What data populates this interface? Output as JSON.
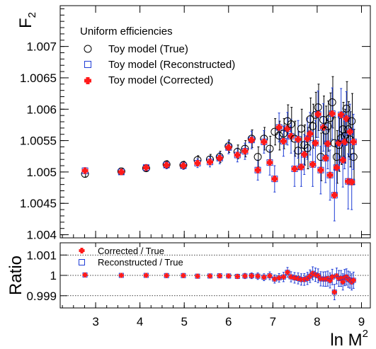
{
  "chart_data": [
    {
      "type": "scatter",
      "panel": "top",
      "ylabel": "F",
      "ylabel_sub": "2",
      "xlim": [
        2.2,
        9.2
      ],
      "ylim": [
        1.00395,
        1.00765
      ],
      "yticks": [
        "1.004",
        "1.0045",
        "1.005",
        "1.0055",
        "1.006",
        "1.0065",
        "1.007"
      ],
      "legend": {
        "header": "Uniform efficiencies",
        "entries": [
          "Toy model (True)",
          "Toy model (Reconstructed)",
          "Toy model (Corrected)"
        ]
      },
      "colors": {
        "true": "#000000",
        "reconstructed": "#1f3dd6",
        "corrected": "#ff1a1a"
      },
      "x": [
        2.76,
        3.58,
        4.14,
        4.6,
        4.98,
        5.3,
        5.58,
        5.8,
        6.0,
        6.2,
        6.37,
        6.52,
        6.66,
        6.8,
        6.93,
        7.04,
        7.14,
        7.24,
        7.33,
        7.41,
        7.49,
        7.57,
        7.64,
        7.71,
        7.78,
        7.84,
        7.9,
        7.96,
        8.02,
        8.08,
        8.14,
        8.19,
        8.24,
        8.29,
        8.34,
        8.39,
        8.44,
        8.49,
        8.54,
        8.58,
        8.62,
        8.66,
        8.7,
        8.74,
        8.78,
        8.82
      ],
      "series": [
        {
          "key": "true",
          "y": [
            1.00497,
            1.00501,
            1.00506,
            1.00512,
            1.00511,
            1.00519,
            1.0052,
            1.00524,
            1.00541,
            1.00532,
            1.00537,
            1.00553,
            1.00524,
            1.00553,
            1.00537,
            1.00564,
            1.00558,
            1.00561,
            1.00581,
            1.00576,
            1.00553,
            1.00534,
            1.00569,
            1.00543,
            1.00538,
            1.00584,
            1.00573,
            1.00591,
            1.00603,
            1.00524,
            1.00583,
            1.00566,
            1.00573,
            1.00586,
            1.00611,
            1.00546,
            1.00524,
            1.00543,
            1.00554,
            1.00568,
            1.00557,
            1.00601,
            1.00568,
            1.00552,
            1.00581,
            1.00524
          ],
          "err": [
            5e-05,
            4e-05,
            5e-05,
            6e-05,
            6e-05,
            7e-05,
            8e-05,
            9e-05,
            0.0001,
            0.00011,
            0.00013,
            0.00014,
            0.00016,
            0.00018,
            0.0002,
            0.00021,
            0.00023,
            0.00024,
            0.00026,
            0.00027,
            0.00028,
            0.0003,
            0.00031,
            0.00032,
            0.00033,
            0.00034,
            0.00035,
            0.00036,
            0.00037,
            0.00038,
            0.00038,
            0.00039,
            0.0004,
            0.0004,
            0.00041,
            0.00041,
            0.00042,
            0.00042,
            0.00042,
            0.00043,
            0.00043,
            0.00043,
            0.00044,
            0.00044,
            0.00044,
            0.00044
          ]
        },
        {
          "key": "reconstructed",
          "y": [
            1.00502,
            1.005,
            1.00507,
            1.00511,
            1.0051,
            1.00514,
            1.00516,
            1.00522,
            1.00539,
            1.00527,
            1.00533,
            1.00551,
            1.00503,
            1.00548,
            1.00515,
            1.00489,
            1.00571,
            1.00549,
            1.00569,
            1.00557,
            1.00505,
            1.00552,
            1.00508,
            1.00528,
            1.00553,
            1.00561,
            1.00512,
            1.00546,
            1.00592,
            1.00503,
            1.00571,
            1.00522,
            1.00545,
            1.00495,
            1.00593,
            1.00463,
            1.00507,
            1.00546,
            1.00591,
            1.00519,
            1.00548,
            1.00585,
            1.00485,
            1.00564,
            1.00484,
            1.00548
          ],
          "err": [
            5e-05,
            4e-05,
            5e-05,
            6e-05,
            6e-05,
            7e-05,
            8e-05,
            9e-05,
            0.0001,
            0.00011,
            0.00013,
            0.00014,
            0.00016,
            0.00018,
            0.0002,
            0.00021,
            0.00023,
            0.00024,
            0.00026,
            0.00027,
            0.00028,
            0.0003,
            0.00031,
            0.00032,
            0.00033,
            0.00034,
            0.00035,
            0.00036,
            0.00037,
            0.00038,
            0.00038,
            0.00039,
            0.0004,
            0.0004,
            0.00041,
            0.00041,
            0.00042,
            0.00042,
            0.00042,
            0.00043,
            0.00043,
            0.00043,
            0.00044,
            0.00044,
            0.00044,
            0.00044
          ]
        },
        {
          "key": "corrected",
          "y": [
            1.00502,
            1.005,
            1.00507,
            1.00511,
            1.0051,
            1.00514,
            1.00516,
            1.00522,
            1.00539,
            1.00527,
            1.00533,
            1.00551,
            1.00503,
            1.00548,
            1.00515,
            1.00489,
            1.00571,
            1.00549,
            1.00569,
            1.00557,
            1.00505,
            1.00552,
            1.00508,
            1.00528,
            1.00553,
            1.00561,
            1.00512,
            1.00546,
            1.00592,
            1.00503,
            1.00571,
            1.00522,
            1.00545,
            1.00495,
            1.00593,
            1.00463,
            1.00507,
            1.00546,
            1.00591,
            1.00519,
            1.00548,
            1.00585,
            1.00485,
            1.00564,
            1.00484,
            1.00548
          ]
        }
      ]
    },
    {
      "type": "scatter",
      "panel": "bottom",
      "ylabel": "Ratio",
      "xlabel": "ln M",
      "xlabel_sup": "2",
      "xlim": [
        2.2,
        9.2
      ],
      "ylim": [
        0.9984,
        1.0016
      ],
      "xticks": [
        "3",
        "4",
        "5",
        "6",
        "7",
        "8",
        "9"
      ],
      "yticks": [
        "0.999",
        "1",
        "1.001"
      ],
      "reference_lines": [
        0.999,
        1.0,
        1.001
      ],
      "legend": {
        "entries": [
          "Corrected / True",
          "Reconstructed / True"
        ]
      },
      "series": [
        {
          "key": "corrected_over_true",
          "y": [
            1.00002,
            1.0,
            1.0,
            0.99999,
            0.99999,
            0.99996,
            0.99997,
            0.99998,
            0.99997,
            0.99995,
            0.99997,
            0.99998,
            0.99996,
            0.99991,
            0.99998,
            0.99982,
            0.99988,
            0.99992,
            1.00015,
            0.99993,
            0.99988,
            0.99985,
            0.9998,
            0.9998,
            0.99985,
            0.99996,
            1.0001,
            1.00003,
            0.99998,
            0.99983,
            0.99982,
            0.99982,
            0.99984,
            0.99975,
            0.99992,
            0.99918,
            0.99997,
            0.99985,
            0.99985,
            0.99968,
            0.99989,
            0.99992,
            0.99981,
            0.99977,
            0.99968,
            0.99976
          ],
          "err": [
            5e-05,
            4e-05,
            5e-05,
            5e-05,
            6e-05,
            7e-05,
            8e-05,
            9e-05,
            0.0001,
            0.00011,
            0.00013,
            0.00014,
            0.00016,
            0.00017,
            0.00019,
            0.0002,
            0.00021,
            0.00023,
            0.00024,
            0.00025,
            0.00026,
            0.00027,
            0.00028,
            0.00029,
            0.0003,
            0.00031,
            0.00032,
            0.00033,
            0.00034,
            0.00035,
            0.00035,
            0.00036,
            0.00037,
            0.00037,
            0.00038,
            0.00038,
            0.00039,
            0.00039,
            0.00039,
            0.0004,
            0.0004,
            0.0004,
            0.0004,
            0.0004,
            0.0004,
            0.0004
          ]
        },
        {
          "key": "reconstructed_over_true",
          "y": [
            1.00002,
            1.0,
            1.0,
            0.99999,
            0.99999,
            0.99996,
            0.99997,
            0.99998,
            0.99997,
            0.99995,
            0.99997,
            0.99998,
            0.99996,
            0.99991,
            0.99998,
            0.99982,
            0.99988,
            0.99992,
            1.00015,
            0.99993,
            0.99988,
            0.99985,
            0.9998,
            0.9998,
            0.99985,
            0.99996,
            1.0001,
            1.00003,
            0.99998,
            0.99983,
            0.99982,
            0.99982,
            0.99984,
            0.99975,
            0.99992,
            0.99918,
            0.99997,
            0.99985,
            0.99985,
            0.99968,
            0.99989,
            0.99992,
            0.99981,
            0.99977,
            0.99968,
            0.99976
          ]
        }
      ]
    }
  ]
}
